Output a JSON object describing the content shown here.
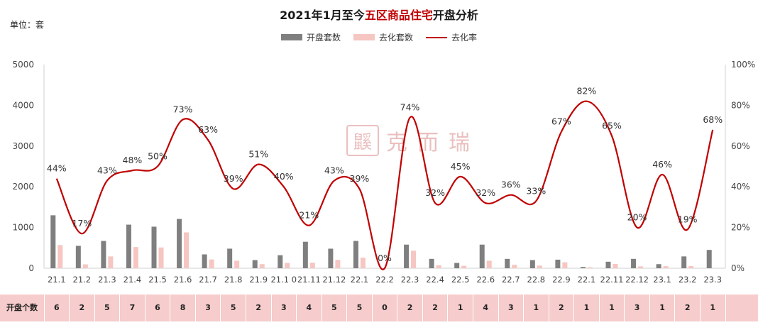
{
  "header": {
    "title_pre": "2021年1月至今",
    "title_hl": "五区商品住宅",
    "title_post": "开盘分析",
    "unit": "单位：套"
  },
  "legend": [
    {
      "label": "开盘套数",
      "color": "#7f7f7f"
    },
    {
      "label": "去化套数",
      "color": "#f6c6c2"
    },
    {
      "label": "去化率",
      "color": "#c00000"
    }
  ],
  "watermark": {
    "seal": "鼷",
    "text": "克而瑞"
  },
  "table": {
    "row_label": "开盘个数",
    "values": [
      "6",
      "2",
      "5",
      "7",
      "6",
      "8",
      "3",
      "5",
      "2",
      "3",
      "4",
      "5",
      "5",
      "0",
      "2",
      "2",
      "1",
      "4",
      "3",
      "1",
      "2",
      "1",
      "1",
      "3",
      "1",
      "2",
      "1"
    ]
  },
  "chart_data": {
    "type": "bar",
    "categories": [
      "21.1",
      "21.2",
      "21.3",
      "21.4",
      "21.5",
      "21.6",
      "21.7",
      "21.8",
      "21.9",
      "21.1 0",
      "21.11",
      "21.12",
      "22.1",
      "22.2",
      "22.3",
      "22.4",
      "22.5",
      "22.6",
      "22.7",
      "22.8",
      "22.9",
      "22.1",
      "22.11",
      "22.12",
      "23.1",
      "23.2",
      "23.3"
    ],
    "series": [
      {
        "name": "开盘套数",
        "type": "bar",
        "axis": "left",
        "color": "#7f7f7f",
        "values": [
          1300,
          550,
          670,
          1070,
          1020,
          1210,
          340,
          480,
          200,
          320,
          650,
          480,
          670,
          0,
          580,
          230,
          130,
          580,
          230,
          200,
          210,
          30,
          160,
          230,
          100,
          290,
          450
        ]
      },
      {
        "name": "去化套数",
        "type": "bar",
        "axis": "left",
        "color": "#f6c6c2",
        "values": [
          570,
          95,
          290,
          520,
          510,
          880,
          215,
          185,
          100,
          130,
          135,
          205,
          260,
          0,
          430,
          75,
          60,
          185,
          85,
          65,
          145,
          25,
          105,
          45,
          50,
          55,
          0
        ]
      },
      {
        "name": "去化率",
        "type": "line",
        "axis": "right",
        "color": "#c00000",
        "values": [
          44,
          17,
          43,
          48,
          50,
          73,
          63,
          39,
          51,
          40,
          21,
          43,
          39,
          0,
          74,
          32,
          45,
          32,
          36,
          33,
          67,
          82,
          65,
          20,
          46,
          19,
          68
        ],
        "labels": [
          "44%",
          "17%",
          "43%",
          "48%",
          "50%",
          "73%",
          "63%",
          "39%",
          "51%",
          "40%",
          "21%",
          "43%",
          "39%",
          "0%",
          "74%",
          "32%",
          "45%",
          "32%",
          "36%",
          "33%",
          "67%",
          "82%",
          "65%",
          "20%",
          "46%",
          "19%",
          "68%"
        ]
      }
    ],
    "yleft": {
      "ylim": [
        0,
        5000
      ],
      "ticks": [
        "0",
        "1000",
        "2000",
        "3000",
        "4000",
        "5000"
      ]
    },
    "yright": {
      "ylim": [
        0,
        100
      ],
      "ticks": [
        "0%",
        "20%",
        "40%",
        "60%",
        "80%",
        "100%"
      ]
    },
    "grid": false,
    "legend_position": "top-center"
  }
}
